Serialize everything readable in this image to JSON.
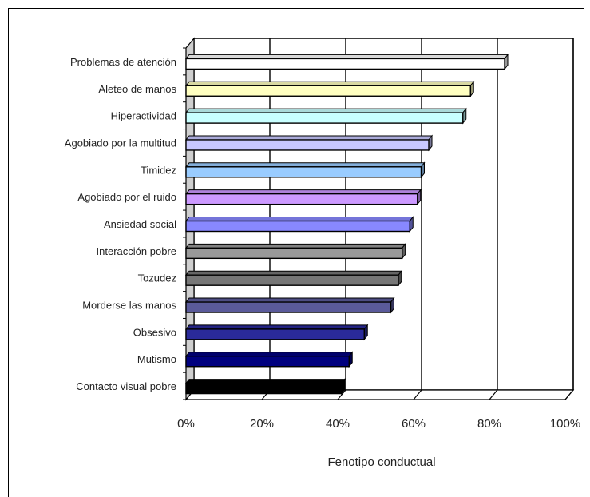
{
  "chart_data": {
    "type": "bar",
    "orientation": "horizontal",
    "three_d": true,
    "categories": [
      "Problemas de atención",
      "Aleteo de manos",
      "Hiperactividad",
      "Agobiado por la multitud",
      "Timidez",
      "Agobiado por el ruido",
      "Ansiedad social",
      "Interacción pobre",
      "Tozudez",
      "Morderse las manos",
      "Obsesivo",
      "Mutismo",
      "Contacto visual pobre"
    ],
    "values": [
      84,
      75,
      73,
      64,
      62,
      61,
      59,
      57,
      56,
      54,
      47,
      43,
      41
    ],
    "colors": [
      "#ffffff",
      "#ffffc0",
      "#c8ffff",
      "#c8c8ff",
      "#99ccff",
      "#cc99ff",
      "#8888ff",
      "#999999",
      "#777777",
      "#5a5a9a",
      "#2a2a9a",
      "#00007f",
      "#000000"
    ],
    "xlim": [
      0,
      100
    ],
    "xticks": [
      "0%",
      "20%",
      "40%",
      "60%",
      "80%",
      "100%"
    ],
    "xlabel": "Fenotipo conductual",
    "ylabel": "",
    "title": "",
    "grid": "vertical"
  }
}
